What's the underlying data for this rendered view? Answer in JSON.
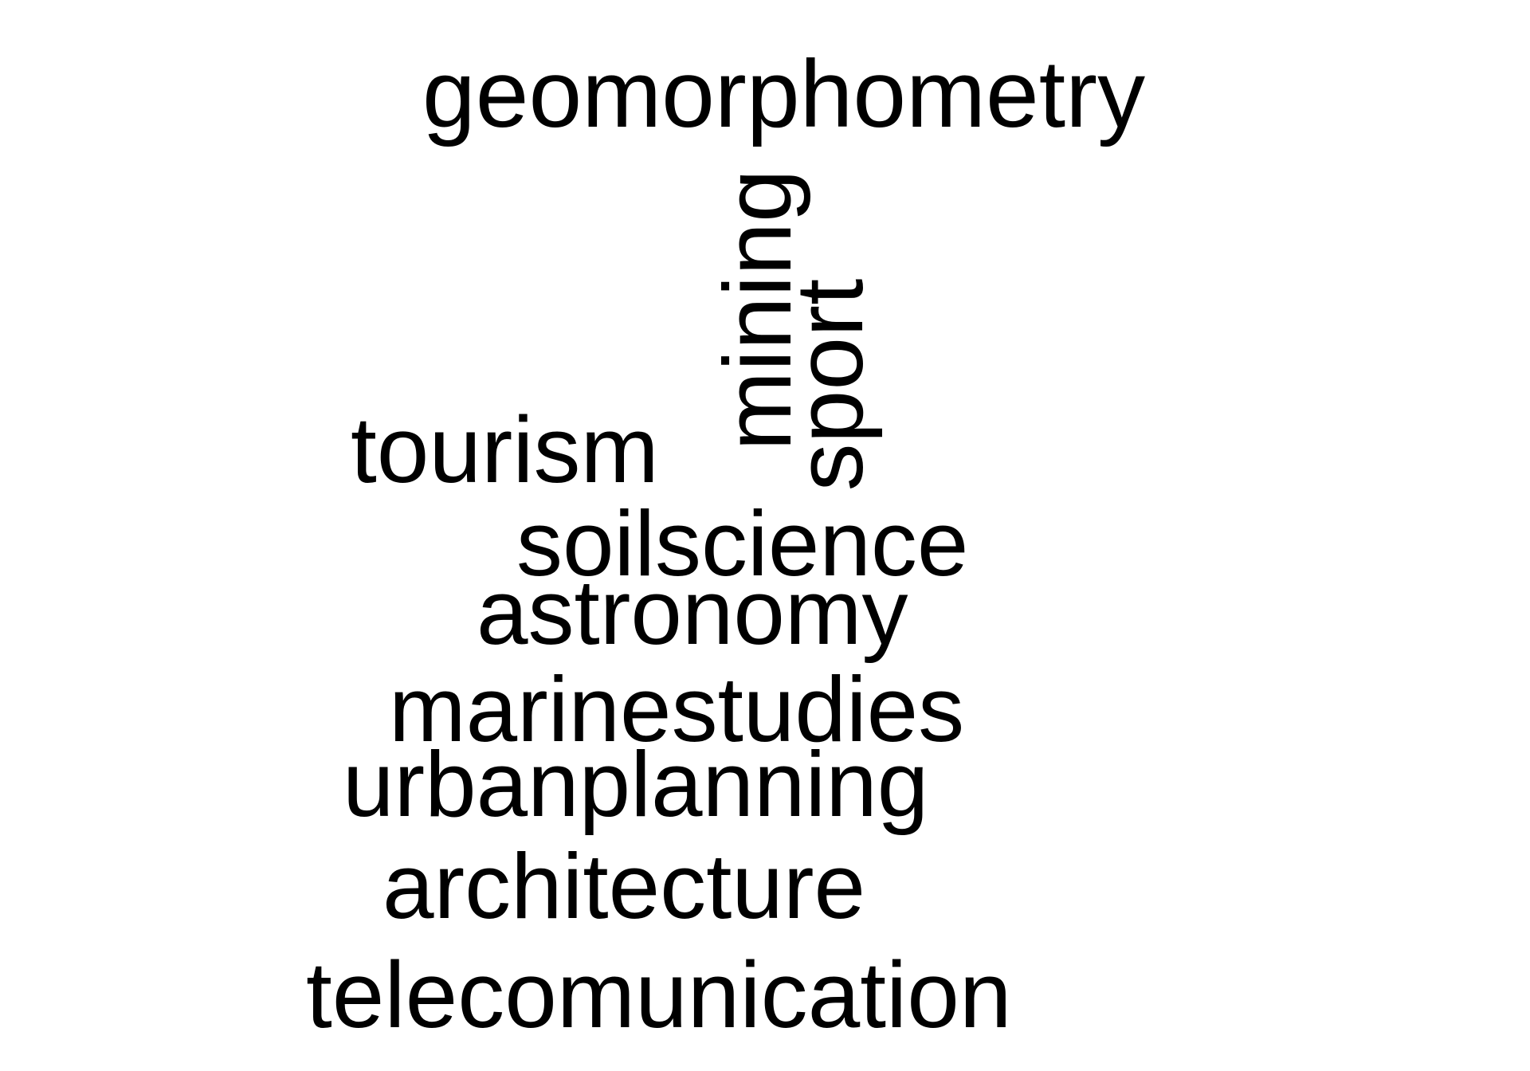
{
  "wordcloud": {
    "words": {
      "geomorphometry": "geomorphometry",
      "mining": "mining",
      "sport": "sport",
      "tourism": "tourism",
      "soilscience": "soilscience",
      "astronomy": "astronomy",
      "marinestudies": "marinestudies",
      "urbanplanning": "urbanplanning",
      "architecture": "architecture",
      "telecomunication": "telecomunication"
    },
    "text_color": "#000000",
    "background_color": "#ffffff"
  }
}
